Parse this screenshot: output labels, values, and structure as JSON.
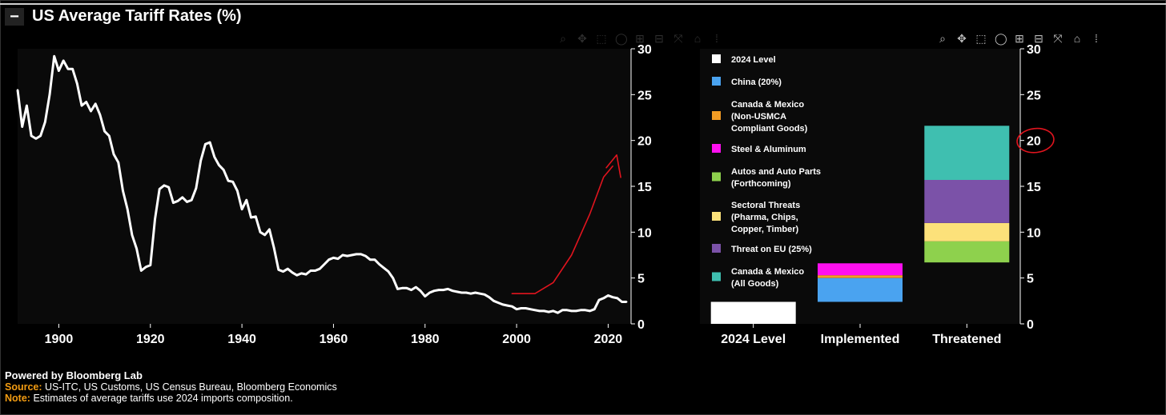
{
  "header": {
    "title": "US Average Tariff Rates (%)",
    "collapse_label": "−"
  },
  "toolbar": {
    "left_icons": [
      "zoom-icon",
      "pan-icon",
      "box-select-icon",
      "lasso-icon",
      "zoom-in-icon",
      "zoom-out-icon",
      "autoscale-icon",
      "home-icon",
      "plotly-logo-icon"
    ],
    "right_icons": [
      "zoom-icon",
      "pan-icon",
      "box-select-icon",
      "lasso-icon",
      "zoom-in-icon",
      "zoom-out-icon",
      "autoscale-icon",
      "home-icon",
      "plotly-logo-icon"
    ]
  },
  "chart_data": [
    {
      "type": "line",
      "title": "US Average Tariff Rates (%)",
      "xlim": [
        1891,
        2025
      ],
      "ylim": [
        0,
        30
      ],
      "x_ticks": [
        1900,
        1920,
        1940,
        1960,
        1980,
        2000,
        2020
      ],
      "y_ticks": [
        0,
        5,
        10,
        15,
        20,
        25,
        30
      ],
      "y_axis_side": "right",
      "grid": false,
      "series": [
        {
          "color": "#ffffff",
          "x": [
            1891,
            1892,
            1893,
            1894,
            1895,
            1896,
            1897,
            1898,
            1899,
            1900,
            1901,
            1902,
            1903,
            1904,
            1905,
            1906,
            1907,
            1908,
            1909,
            1910,
            1911,
            1912,
            1913,
            1914,
            1915,
            1916,
            1917,
            1918,
            1919,
            1920,
            1921,
            1922,
            1923,
            1924,
            1925,
            1926,
            1927,
            1928,
            1929,
            1930,
            1931,
            1932,
            1933,
            1934,
            1935,
            1936,
            1937,
            1938,
            1939,
            1940,
            1941,
            1942,
            1943,
            1944,
            1945,
            1946,
            1947,
            1948,
            1949,
            1950,
            1951,
            1952,
            1953,
            1954,
            1955,
            1956,
            1957,
            1958,
            1959,
            1960,
            1961,
            1962,
            1963,
            1964,
            1965,
            1966,
            1967,
            1968,
            1969,
            1970,
            1971,
            1972,
            1973,
            1974,
            1975,
            1976,
            1977,
            1978,
            1979,
            1980,
            1981,
            1982,
            1983,
            1984,
            1985,
            1986,
            1987,
            1988,
            1989,
            1990,
            1991,
            1992,
            1993,
            1994,
            1995,
            1996,
            1997,
            1998,
            1999,
            2000,
            2001,
            2002,
            2003,
            2004,
            2005,
            2006,
            2007,
            2008,
            2009,
            2010,
            2011,
            2012,
            2013,
            2014,
            2015,
            2016,
            2017,
            2018,
            2019,
            2020,
            2021,
            2022,
            2023,
            2024
          ],
          "values": [
            25.5,
            21.5,
            23.8,
            20.5,
            20.2,
            20.5,
            22,
            25,
            29.2,
            27.6,
            28.7,
            27.8,
            27.8,
            26.2,
            23.8,
            24.2,
            23.2,
            24,
            22.8,
            21,
            20.5,
            18.5,
            17.6,
            14.5,
            12.5,
            9.7,
            8.2,
            5.8,
            6.2,
            6.4,
            11.4,
            14.7,
            15.1,
            14.9,
            13.2,
            13.4,
            13.8,
            13.3,
            13.5,
            14.8,
            17.8,
            19.6,
            19.8,
            18.2,
            17.3,
            16.8,
            15.6,
            15.5,
            14.5,
            12.5,
            13.5,
            11.6,
            11.7,
            10,
            9.7,
            10.3,
            8.3,
            5.9,
            5.7,
            6,
            5.6,
            5.3,
            5.5,
            5.4,
            5.8,
            5.8,
            6,
            6.5,
            7,
            7.2,
            7.1,
            7.5,
            7.4,
            7.5,
            7.6,
            7.6,
            7.4,
            7,
            7,
            6.5,
            6.1,
            5.7,
            5,
            3.8,
            3.9,
            3.9,
            3.7,
            4,
            3.6,
            3,
            3.4,
            3.6,
            3.7,
            3.7,
            3.8,
            3.6,
            3.5,
            3.4,
            3.4,
            3.3,
            3.4,
            3.3,
            3.2,
            2.9,
            2.5,
            2.3,
            2.1,
            2,
            1.9,
            1.6,
            1.7,
            1.7,
            1.6,
            1.5,
            1.4,
            1.4,
            1.3,
            1.4,
            1.2,
            1.5,
            1.5,
            1.4,
            1.4,
            1.5,
            1.5,
            1.4,
            1.6,
            2.6,
            2.8,
            3.1,
            2.9,
            2.8,
            2.4,
            2.4
          ]
        }
      ]
    },
    {
      "type": "bar",
      "stacked": true,
      "categories": [
        "2024 Level",
        "Implemented",
        "Threatened"
      ],
      "ylim": [
        0,
        30
      ],
      "y_ticks": [
        0,
        5,
        10,
        15,
        20,
        25,
        30
      ],
      "y_axis_side": "right",
      "legend_position": "left-inside",
      "series": [
        {
          "name": "2024 Level",
          "color": "#ffffff",
          "values": [
            2.4,
            null,
            null
          ]
        },
        {
          "name": "China (20%)",
          "color": "#4aa3f0",
          "values": [
            null,
            2.6,
            null
          ]
        },
        {
          "name": "Canada & Mexico (Non-USMCA Compliant Goods)",
          "color": "#f39c24",
          "values": [
            null,
            0.3,
            null
          ]
        },
        {
          "name": "Steel & Aluminum",
          "color": "#ff10f0",
          "values": [
            null,
            1.3,
            null
          ]
        },
        {
          "name": "Autos and Auto Parts (Forthcoming)",
          "color": "#8ed14d",
          "values": [
            null,
            null,
            2.3
          ]
        },
        {
          "name": "Sectoral Threats (Pharma, Chips, Copper, Timber)",
          "color": "#fce17a",
          "values": [
            null,
            null,
            2
          ]
        },
        {
          "name": "Threat on EU (25%)",
          "color": "#7b52a8",
          "values": [
            null,
            null,
            4.7
          ]
        },
        {
          "name": "Canada & Mexico (All Goods)",
          "color": "#3fbfb0",
          "values": [
            null,
            null,
            5.9
          ]
        }
      ],
      "bases": [
        0,
        2.4,
        6.7
      ],
      "legend_lines": [
        [
          "2024 Level"
        ],
        [
          "China (20%)"
        ],
        [
          "Canada & Mexico",
          "(Non-USMCA",
          "Compliant Goods)"
        ],
        [
          "Steel & Aluminum"
        ],
        [
          "Autos and Auto Parts",
          "(Forthcoming)"
        ],
        [
          "Sectoral Threats",
          "(Pharma, Chips,",
          "Copper, Timber)"
        ],
        [
          "Threat on EU (25%)"
        ],
        [
          "Canada & Mexico",
          "(All Goods)"
        ]
      ]
    }
  ],
  "annotations": {
    "stroke_color": "#e0141e",
    "arrow_curve": {
      "x": [
        1999,
        2004,
        2008,
        2012,
        2016,
        2019,
        2021
      ],
      "values": [
        3.3,
        3.3,
        4.5,
        7.5,
        12,
        16,
        17.2
      ]
    },
    "circle_tick": 20
  },
  "footer": {
    "powered": "Powered by Bloomberg Lab",
    "source_label": "Source:",
    "source_text": "US-ITC, US Customs, US Census Bureau, Bloomberg Economics",
    "note_label": "Note:",
    "note_text": "Estimates of average tariffs use 2024 imports composition."
  }
}
